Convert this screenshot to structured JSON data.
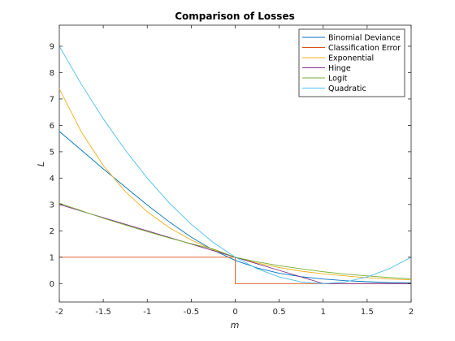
{
  "chart_data": {
    "type": "line",
    "title": "Comparison of Losses",
    "xlabel": "m",
    "ylabel": "L",
    "xlim": [
      -2,
      2
    ],
    "ylim": [
      -0.7,
      9.8
    ],
    "xticks": [
      -2,
      -1.5,
      -1,
      -0.5,
      0,
      0.5,
      1,
      1.5,
      2
    ],
    "xtick_labels": [
      "-2",
      "-1.5",
      "-1",
      "-0.5",
      "0",
      "0.5",
      "1",
      "1.5",
      "2"
    ],
    "yticks": [
      0,
      1,
      2,
      3,
      4,
      5,
      6,
      7,
      8,
      9
    ],
    "ytick_labels": [
      "0",
      "1",
      "2",
      "3",
      "4",
      "5",
      "6",
      "7",
      "8",
      "9"
    ],
    "grid": false,
    "legend_position": "top-right",
    "x": [
      -2,
      -1.75,
      -1.5,
      -1.25,
      -1,
      -0.75,
      -0.5,
      -0.25,
      0,
      0.25,
      0.5,
      0.75,
      1,
      1.25,
      1.5,
      1.75,
      2
    ],
    "series": [
      {
        "name": "Binomial Deviance",
        "color": "#0072BD",
        "values": [
          5.77,
          5.06,
          4.35,
          3.66,
          2.98,
          2.34,
          1.76,
          1.27,
          0.88,
          0.59,
          0.39,
          0.26,
          0.17,
          0.11,
          0.07,
          0.04,
          0.03
        ]
      },
      {
        "name": "Classification Error",
        "color": "#D95319",
        "step": true,
        "values": [
          1,
          1,
          1,
          1,
          1,
          1,
          1,
          1,
          1,
          0,
          0,
          0,
          0,
          0,
          0,
          0,
          0
        ]
      },
      {
        "name": "Exponential",
        "color": "#EDB120",
        "values": [
          7.39,
          5.75,
          4.48,
          3.49,
          2.72,
          2.12,
          1.65,
          1.28,
          1.0,
          0.78,
          0.61,
          0.47,
          0.37,
          0.29,
          0.22,
          0.17,
          0.14
        ]
      },
      {
        "name": "Hinge",
        "color": "#7E2F8E",
        "values": [
          3.0,
          2.75,
          2.5,
          2.25,
          2.0,
          1.75,
          1.5,
          1.25,
          1.0,
          0.75,
          0.5,
          0.25,
          0,
          0,
          0,
          0,
          0
        ]
      },
      {
        "name": "Logit",
        "color": "#77AC30",
        "values": [
          3.05,
          2.76,
          2.48,
          2.22,
          1.97,
          1.73,
          1.51,
          1.31,
          1.0,
          0.82,
          0.68,
          0.56,
          0.45,
          0.36,
          0.29,
          0.23,
          0.18
        ]
      },
      {
        "name": "Quadratic",
        "color": "#4DBEEE",
        "values": [
          9.0,
          7.56,
          6.25,
          5.06,
          4.0,
          3.06,
          2.25,
          1.56,
          1.0,
          0.56,
          0.25,
          0.06,
          0,
          0.06,
          0.25,
          0.56,
          1.0
        ]
      }
    ]
  }
}
